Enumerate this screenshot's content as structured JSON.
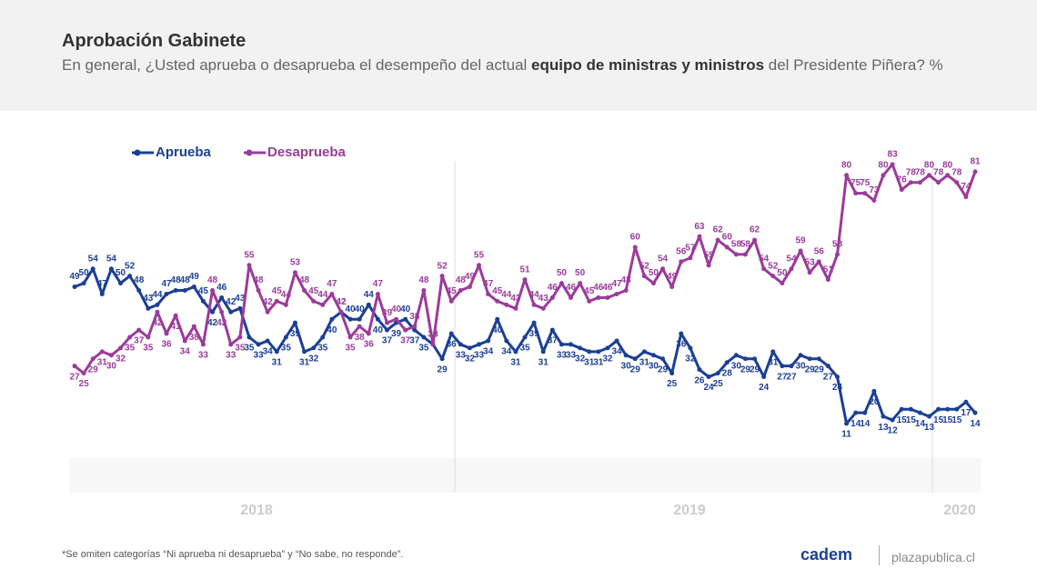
{
  "chart_data": {
    "type": "line",
    "title": "Aprobación Gabinete",
    "subtitle": [
      "En general, ¿Usted aprueba o desaprueba el desempeño del actual ",
      "equipo de ministras y ministros",
      " del Presidente Piñera? %"
    ],
    "years": [
      "2018",
      "2019",
      "2020"
    ],
    "footnote": "*Se omiten categorías “Ni aprueba ni desaprueba” y “No sabe, no responde”.",
    "logo": "cadem",
    "source": "plazapublica.cl",
    "ylim": [
      0,
      100
    ],
    "series": [
      {
        "name": "Aprueba",
        "color": "#1a3f95",
        "values": [
          49,
          50,
          54,
          47,
          54,
          50,
          52,
          48,
          43,
          44,
          47,
          48,
          48,
          49,
          45,
          42,
          46,
          42,
          43,
          35,
          33,
          34,
          31,
          35,
          39,
          31,
          32,
          35,
          40,
          42,
          40,
          40,
          44,
          40,
          37,
          39,
          40,
          37,
          35,
          33,
          29,
          36,
          33,
          32,
          33,
          34,
          40,
          34,
          31,
          35,
          39,
          31,
          37,
          33,
          33,
          32,
          31,
          31,
          32,
          34,
          30,
          29,
          31,
          30,
          29,
          25,
          36,
          32,
          26,
          24,
          25,
          28,
          30,
          29,
          29,
          24,
          31,
          27,
          27,
          30,
          29,
          29,
          27,
          24,
          11,
          14,
          14,
          20,
          13,
          12,
          15,
          15,
          14,
          13,
          15,
          15,
          15,
          17,
          14
        ]
      },
      {
        "name": "Desaprueba",
        "color": "#9b3b9b",
        "values": [
          27,
          25,
          29,
          31,
          30,
          32,
          35,
          37,
          35,
          42,
          36,
          41,
          34,
          38,
          33,
          48,
          42,
          33,
          35,
          55,
          48,
          42,
          45,
          44,
          53,
          48,
          45,
          44,
          47,
          42,
          35,
          38,
          36,
          47,
          39,
          40,
          37,
          38,
          48,
          33,
          52,
          45,
          48,
          49,
          55,
          47,
          45,
          44,
          43,
          51,
          44,
          43,
          46,
          50,
          46,
          50,
          45,
          46,
          46,
          47,
          48,
          60,
          52,
          50,
          54,
          49,
          56,
          57,
          63,
          55,
          62,
          60,
          58,
          58,
          62,
          54,
          52,
          50,
          54,
          59,
          53,
          56,
          51,
          58,
          80,
          75,
          75,
          73,
          80,
          83,
          76,
          78,
          78,
          80,
          78,
          80,
          78,
          74,
          81
        ]
      }
    ]
  }
}
